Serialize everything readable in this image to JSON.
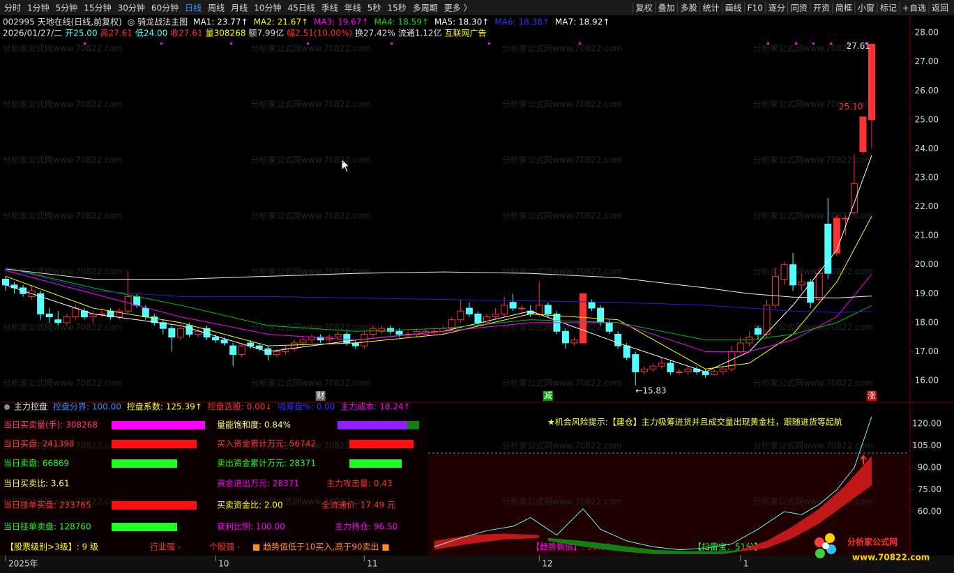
{
  "toolbar": {
    "left": [
      "分时",
      "1分钟",
      "5分钟",
      "15分钟",
      "30分钟",
      "60分钟",
      "日线",
      "周线",
      "月线",
      "10分钟",
      "45日线",
      "季线",
      "年线",
      "5秒",
      "15秒",
      "多周期",
      "更多 〉"
    ],
    "active_index": 6,
    "right": [
      "复权",
      "叠加",
      "多股",
      "统计",
      "画线",
      "F10",
      "逐分",
      "同资",
      "开资",
      "简框",
      "小窗",
      "标记",
      "+自选",
      "返回"
    ]
  },
  "info": {
    "line1": [
      {
        "text": "002995 天地在线(日线,前复权)",
        "color": "#e0e0e0"
      },
      {
        "text": "◎ 骑龙战法主图",
        "color": "#e0e0e0"
      },
      {
        "text": "MA1: 23.77↑",
        "color": "#ffffff"
      },
      {
        "text": "MA2: 21.67↑",
        "color": "#ffff00"
      },
      {
        "text": "MA3: 19.67↑",
        "color": "#ff00ff"
      },
      {
        "text": "MA4: 18.59↑",
        "color": "#00e000"
      },
      {
        "text": "MA5: 18.30↑",
        "color": "#ffffff"
      },
      {
        "text": "MA6: 18.38↑",
        "color": "#3030ff"
      },
      {
        "text": "MA7: 18.92↑",
        "color": "#ffffff"
      }
    ],
    "line2": [
      {
        "text": "2026/01/27/二",
        "color": "#e0e0e0"
      },
      {
        "text": "开25.00",
        "color": "#54ffff"
      },
      {
        "text": "高27.61",
        "color": "#ff3232"
      },
      {
        "text": "低24.00",
        "color": "#54ffff"
      },
      {
        "text": "收27.61",
        "color": "#ff3232"
      },
      {
        "text": "量308268",
        "color": "#ffff00"
      },
      {
        "text": "额7.99亿",
        "color": "#e0e0e0"
      },
      {
        "text": "幅2.51(10.00%)",
        "color": "#ff3232"
      },
      {
        "text": "换27.42%",
        "color": "#e0e0e0"
      },
      {
        "text": "流通1.12亿",
        "color": "#e0e0e0"
      },
      {
        "text": "互联网广告",
        "color": "#ffff00"
      }
    ]
  },
  "watermark": "分析家公式网www.70822.com",
  "chart_data": {
    "type": "candlestick",
    "ylim": [
      15.23,
      28.46
    ],
    "yticks": [
      {
        "value": 28,
        "label": "28.00"
      },
      {
        "value": 27,
        "label": "27.00"
      },
      {
        "value": 26,
        "label": "26.00"
      },
      {
        "value": 25,
        "label": "25.00"
      },
      {
        "value": 24,
        "label": "24.00"
      },
      {
        "value": 23,
        "label": "23.00"
      },
      {
        "value": 22,
        "label": "22.00"
      },
      {
        "value": 21,
        "label": "21.00"
      },
      {
        "value": 20,
        "label": "20.00"
      },
      {
        "value": 19,
        "label": "19.00"
      },
      {
        "value": 18,
        "label": "18.00"
      },
      {
        "value": 17,
        "label": "17.00"
      },
      {
        "value": 16,
        "label": "16.00"
      }
    ],
    "up_color": "#ff3232",
    "down_color": "#54ffff",
    "categories": [
      "2025年",
      null,
      null,
      null,
      null,
      null,
      null,
      null,
      null,
      null,
      null,
      null,
      null,
      null,
      null,
      null,
      null,
      null,
      null,
      null,
      null,
      null,
      null,
      null,
      "10",
      null,
      null,
      null,
      null,
      null,
      null,
      null,
      null,
      null,
      null,
      null,
      null,
      null,
      null,
      null,
      null,
      "11",
      null,
      null,
      null,
      null,
      null,
      null,
      null,
      null,
      null,
      null,
      null,
      null,
      null,
      null,
      null,
      null,
      null,
      null,
      null,
      "12",
      null,
      null,
      null,
      null,
      null,
      null,
      null,
      null,
      null,
      null,
      null,
      null,
      null,
      null,
      null,
      null,
      null,
      null,
      null,
      null,
      null,
      null,
      "1",
      null,
      null,
      null,
      null,
      null,
      null,
      null,
      null,
      null,
      null,
      null,
      null,
      null,
      null,
      null
    ],
    "ohlc": [
      [
        19.5,
        19.6,
        19.1,
        19.3
      ],
      [
        19.3,
        19.4,
        19.0,
        19.2
      ],
      [
        19.2,
        19.3,
        18.9,
        19.0
      ],
      [
        18.9,
        19.3,
        18.8,
        19.1
      ],
      [
        19.0,
        19.1,
        18.1,
        18.3
      ],
      [
        18.3,
        18.5,
        18.0,
        18.2
      ],
      [
        18.1,
        18.4,
        17.9,
        18.0
      ],
      [
        18.0,
        18.3,
        17.9,
        18.2
      ],
      [
        18.2,
        18.6,
        18.1,
        18.5
      ],
      [
        18.4,
        18.5,
        18.1,
        18.2
      ],
      [
        18.2,
        18.4,
        18.0,
        18.3
      ],
      [
        18.3,
        18.5,
        18.2,
        18.3
      ],
      [
        18.4,
        18.5,
        18.1,
        18.2
      ],
      [
        18.2,
        18.5,
        18.1,
        18.4
      ],
      [
        18.4,
        19.8,
        18.3,
        18.9
      ],
      [
        18.9,
        19.0,
        18.5,
        18.6
      ],
      [
        18.5,
        18.6,
        18.1,
        18.2
      ],
      [
        18.2,
        18.3,
        17.9,
        18.0
      ],
      [
        18.0,
        18.1,
        17.6,
        17.8
      ],
      [
        17.8,
        17.9,
        17.0,
        17.5
      ],
      [
        17.5,
        17.9,
        17.4,
        17.8
      ],
      [
        17.9,
        18.0,
        17.5,
        17.6
      ],
      [
        17.6,
        17.8,
        17.5,
        17.7
      ],
      [
        17.8,
        17.9,
        17.4,
        17.5
      ],
      [
        17.5,
        17.6,
        17.3,
        17.4
      ],
      [
        17.4,
        17.5,
        17.2,
        17.3
      ],
      [
        17.2,
        17.3,
        16.5,
        16.9
      ],
      [
        16.9,
        17.3,
        16.8,
        17.2
      ],
      [
        17.3,
        17.4,
        17.1,
        17.2
      ],
      [
        17.2,
        17.3,
        17.0,
        17.1
      ],
      [
        17.1,
        17.2,
        16.7,
        16.9
      ],
      [
        16.9,
        17.1,
        16.8,
        17.0
      ],
      [
        17.0,
        17.2,
        16.9,
        17.1
      ],
      [
        17.1,
        17.4,
        17.0,
        17.3
      ],
      [
        17.3,
        17.5,
        17.2,
        17.4
      ],
      [
        17.4,
        17.6,
        17.3,
        17.5
      ],
      [
        17.5,
        17.6,
        17.3,
        17.4
      ],
      [
        17.4,
        17.6,
        17.3,
        17.5
      ],
      [
        17.5,
        17.7,
        17.4,
        17.6
      ],
      [
        17.6,
        17.7,
        17.2,
        17.3
      ],
      [
        17.3,
        17.4,
        17.1,
        17.2
      ],
      [
        17.2,
        17.7,
        17.1,
        17.6
      ],
      [
        17.6,
        17.9,
        17.5,
        17.8
      ],
      [
        17.7,
        17.9,
        17.6,
        17.8
      ],
      [
        17.8,
        17.9,
        17.6,
        17.7
      ],
      [
        17.7,
        17.8,
        17.5,
        17.6
      ],
      [
        17.6,
        17.7,
        17.5,
        17.6
      ],
      [
        17.6,
        17.8,
        17.5,
        17.7
      ],
      [
        17.6,
        17.8,
        17.6,
        17.7
      ],
      [
        17.7,
        17.8,
        17.6,
        17.7
      ],
      [
        17.7,
        17.9,
        17.6,
        17.8
      ],
      [
        17.8,
        18.2,
        17.7,
        18.1
      ],
      [
        18.1,
        18.8,
        18.0,
        18.4
      ],
      [
        18.5,
        18.7,
        18.2,
        18.3
      ],
      [
        18.3,
        18.4,
        17.9,
        18.0
      ],
      [
        18.0,
        18.3,
        17.9,
        18.2
      ],
      [
        18.2,
        18.5,
        18.1,
        18.3
      ],
      [
        18.3,
        18.9,
        18.2,
        18.6
      ],
      [
        18.7,
        19.0,
        18.4,
        18.5
      ],
      [
        18.5,
        18.6,
        18.3,
        18.5
      ],
      [
        18.4,
        18.6,
        18.2,
        18.3
      ],
      [
        18.3,
        19.4,
        18.2,
        18.6
      ],
      [
        18.6,
        18.7,
        18.2,
        18.3
      ],
      [
        18.3,
        18.4,
        17.6,
        17.7
      ],
      [
        17.7,
        17.8,
        17.1,
        17.3
      ],
      [
        17.3,
        17.5,
        17.2,
        17.4
      ],
      [
        17.3,
        19.0,
        17.3,
        19.0
      ],
      [
        18.7,
        18.8,
        18.4,
        18.5
      ],
      [
        18.5,
        18.6,
        17.9,
        18.0
      ],
      [
        18.0,
        18.1,
        17.6,
        17.7
      ],
      [
        17.6,
        17.7,
        17.1,
        17.2
      ],
      [
        17.2,
        17.3,
        16.7,
        16.8
      ],
      [
        16.9,
        17.0,
        15.83,
        16.3
      ],
      [
        16.3,
        16.5,
        16.2,
        16.4
      ],
      [
        16.4,
        16.6,
        16.3,
        16.5
      ],
      [
        16.5,
        16.8,
        16.4,
        16.6
      ],
      [
        16.6,
        16.7,
        16.2,
        16.3
      ],
      [
        16.3,
        16.4,
        16.2,
        16.3
      ],
      [
        16.3,
        16.5,
        16.2,
        16.4
      ],
      [
        16.4,
        16.5,
        16.2,
        16.3
      ],
      [
        16.3,
        16.4,
        16.1,
        16.2
      ],
      [
        16.2,
        16.4,
        16.2,
        16.3
      ],
      [
        16.3,
        16.5,
        16.2,
        16.4
      ],
      [
        16.4,
        17.2,
        16.3,
        17.0
      ],
      [
        17.0,
        17.5,
        16.9,
        17.3
      ],
      [
        17.3,
        17.7,
        17.2,
        17.5
      ],
      [
        17.8,
        17.9,
        17.4,
        17.6
      ],
      [
        17.6,
        18.8,
        17.5,
        18.6
      ],
      [
        18.6,
        19.9,
        18.5,
        19.6
      ],
      [
        19.5,
        20.1,
        19.3,
        20.0
      ],
      [
        20.0,
        20.4,
        19.1,
        19.3
      ],
      [
        19.3,
        19.7,
        19.1,
        19.4
      ],
      [
        19.4,
        19.5,
        18.5,
        18.7
      ],
      [
        18.8,
        19.9,
        18.7,
        19.7
      ],
      [
        21.4,
        22.3,
        19.5,
        19.7
      ],
      [
        20.4,
        21.7,
        20.3,
        21.6
      ],
      [
        21.6,
        21.7,
        21.0,
        21.6
      ],
      [
        21.8,
        23.8,
        21.7,
        22.8
      ],
      [
        23.9,
        25.1,
        23.8,
        25.1
      ],
      [
        25.0,
        27.61,
        24.0,
        27.61
      ]
    ],
    "ma_lines": {
      "x": [
        0,
        10,
        20,
        30,
        40,
        50,
        60,
        70,
        80,
        85,
        90,
        95,
        99
      ],
      "series": [
        {
          "color": "#ffffff",
          "values": [
            19.3,
            18.3,
            17.9,
            17.0,
            17.4,
            17.7,
            18.4,
            17.3,
            16.3,
            17.0,
            18.6,
            20.5,
            23.77
          ]
        },
        {
          "color": "#ffff00",
          "values": [
            19.6,
            18.5,
            18.0,
            17.2,
            17.3,
            17.6,
            18.3,
            18.1,
            16.4,
            16.6,
            17.6,
            19.4,
            21.67
          ]
        },
        {
          "color": "#ff00ff",
          "values": [
            19.8,
            19.0,
            18.2,
            17.6,
            17.4,
            17.7,
            18.0,
            18.0,
            17.0,
            17.0,
            17.4,
            18.2,
            19.67
          ]
        },
        {
          "color": "#00c000",
          "values": [
            19.9,
            19.2,
            18.6,
            17.9,
            17.7,
            17.8,
            18.1,
            18.0,
            17.4,
            17.4,
            17.6,
            18.0,
            18.59
          ]
        },
        {
          "color": "#2020e0",
          "values": [
            19.9,
            19.1,
            18.9,
            18.9,
            18.85,
            18.8,
            18.75,
            18.7,
            18.6,
            18.5,
            18.4,
            18.35,
            18.38
          ]
        },
        {
          "color": "#f0f0f0",
          "values": [
            19.85,
            19.5,
            19.5,
            19.6,
            19.7,
            19.75,
            19.7,
            19.55,
            19.2,
            19.0,
            18.88,
            18.85,
            18.92
          ]
        }
      ]
    },
    "annotations": [
      {
        "label": "27.61",
        "value": 27.61,
        "index": 99
      },
      {
        "label": "25.10",
        "value": 25.1,
        "index": 98
      },
      {
        "label": "←15.83",
        "value": 15.83,
        "index": 72
      }
    ],
    "events": [
      {
        "label": "财",
        "index": 36,
        "color": "#606060"
      },
      {
        "label": "减",
        "index": 62,
        "color": "#00a000"
      },
      {
        "label": "涨",
        "index": 99,
        "color": "#d00000"
      }
    ]
  },
  "indicator": {
    "header": [
      {
        "text": "主力控盘",
        "color": "#e0e0e0"
      },
      {
        "text": "控盘分界: 100.00",
        "color": "#3a8cff"
      },
      {
        "text": "控盘系数: 125.39↑",
        "color": "#ffff00"
      },
      {
        "text": "控盘选股: 0.00↓",
        "color": "#ff3232"
      },
      {
        "text": "吸筹盘%: 0.00",
        "color": "#3030ff"
      },
      {
        "text": "主力成本: 18.24↑",
        "color": "#ff00ff"
      }
    ],
    "rows": [
      {
        "left": "当日买卖量(手): 308268",
        "left_color": "#ff3c6e",
        "bar": "#ff00ff",
        "mid": "量能饱和度:  0.84%",
        "mid_color": "#ffff80",
        "right_bar": "#9020ff"
      },
      {
        "left": "当日买盘: 241398",
        "left_color": "#ff3232",
        "bar": "#ff1010",
        "mid": "买入资金累计万元: 56742",
        "mid_color": "#ff3232",
        "right_bar": "#ff1010"
      },
      {
        "left": "当日卖盘: 66869",
        "left_color": "#20ff20",
        "bar": "#20ff20",
        "mid": "卖出资金累计万元: 28371",
        "mid_color": "#20ff20",
        "right_bar": "#20ff20"
      },
      {
        "left": "当日买卖比:  3.61",
        "left_color": "#ffff80",
        "mid": "资金进出万元: 28371",
        "mid_color": "#ff00ff",
        "right": "主力攻击量:   0.43",
        "right_color": "#ff3232"
      },
      {
        "left": "当日挂单买盘: 233765",
        "left_color": "#ff3232",
        "bar": "#ff1010",
        "mid": "买卖资金比: 2.00",
        "mid_color": "#ffff00",
        "right": "全流通价:  17.49  元",
        "right_color": "#ff3232"
      },
      {
        "left": "当日挂单卖盘: 128760",
        "left_color": "#20ff20",
        "bar": "#20ff20",
        "mid": "获利比例: 100.00",
        "mid_color": "#ff00ff",
        "right": "主力持仓: 96.50",
        "right_color": "#ff00ff"
      }
    ],
    "tip": "★机会风险提示:【建仓】主力吸筹进货并且成交量出现黄金柱，跟随进货等起航",
    "bottom": [
      {
        "text": "【股票级别>3级】: 9    级",
        "color": "#ffff00"
      },
      {
        "text": "行业强 -",
        "color": "#ff3232"
      },
      {
        "text": "个股强 -",
        "color": "#ff3232"
      },
      {
        "text": "■ 趋势值低于10买入,高于90卖出 ■",
        "color": "#ff9020"
      },
      {
        "text": "【趋势数值】: 99.13",
        "color": "#ff00ff"
      },
      {
        "text": "【扫雷宝：51分】",
        "color": "#20ff20"
      }
    ],
    "ylim": [
      30,
      124.8
    ],
    "yticks": [
      {
        "value": 120,
        "label": "120.00"
      },
      {
        "value": 105,
        "label": "105.00"
      },
      {
        "value": 90,
        "label": "90.00"
      },
      {
        "value": 75,
        "label": "75.00"
      },
      {
        "value": 60,
        "label": "60.00"
      }
    ],
    "ref_line": 100,
    "line": {
      "color": "#54ffff",
      "x": [
        49,
        52,
        55,
        58,
        60,
        63,
        66,
        68,
        71,
        74,
        77,
        80,
        83,
        86,
        89,
        91,
        93,
        95,
        97,
        99
      ],
      "values": [
        36,
        42,
        47,
        50,
        56,
        44,
        62,
        48,
        40,
        36,
        34,
        35,
        38,
        48,
        60,
        58,
        65,
        75,
        90,
        125
      ]
    },
    "bands": [
      {
        "color": "#c01818",
        "x": [
          49,
          53,
          57,
          61
        ],
        "upper": [
          40,
          44,
          45,
          44
        ],
        "lower": [
          34,
          38,
          41,
          42
        ]
      },
      {
        "color": "#108010",
        "x": [
          62,
          66,
          70,
          74,
          78,
          82,
          84
        ],
        "upper": [
          42,
          40,
          37,
          34,
          33,
          33,
          34
        ],
        "lower": [
          40,
          36,
          33,
          31,
          31,
          31,
          33
        ]
      },
      {
        "color": "#c01818",
        "x": [
          84,
          87,
          90,
          93,
          96,
          99
        ],
        "upper": [
          34,
          40,
          50,
          62,
          78,
          98
        ],
        "lower": [
          33,
          35,
          42,
          52,
          65,
          78
        ]
      }
    ]
  },
  "logo": {
    "name": "分析家公式网",
    "url": "www.70822.com"
  }
}
